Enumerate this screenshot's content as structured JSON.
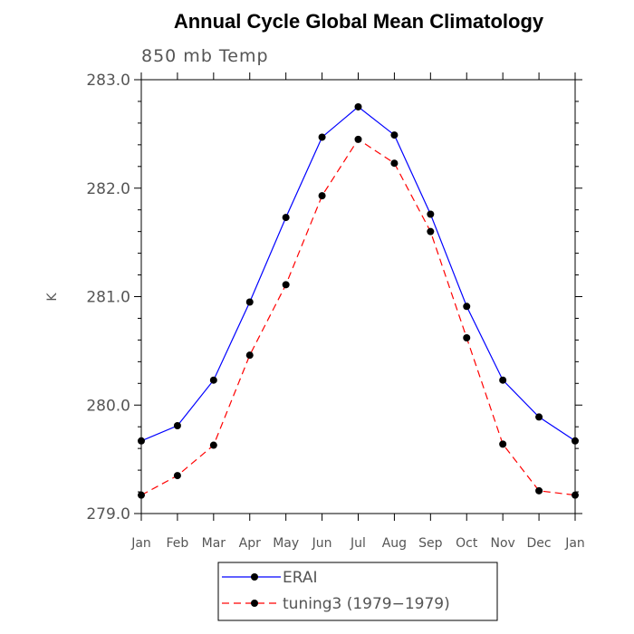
{
  "chart_data": {
    "type": "line",
    "title": "Annual Cycle Global Mean Climatology",
    "subtitle": "850 mb Temp",
    "xlabel": "",
    "ylabel": "K",
    "ylim": [
      279.0,
      283.0
    ],
    "yticks": [
      "279.0",
      "280.0",
      "281.0",
      "282.0",
      "283.0"
    ],
    "categories": [
      "Jan",
      "Feb",
      "Mar",
      "Apr",
      "May",
      "Jun",
      "Jul",
      "Aug",
      "Sep",
      "Oct",
      "Nov",
      "Dec",
      "Jan"
    ],
    "series": [
      {
        "name": "ERAI",
        "color": "#0000ff",
        "dash": "solid",
        "values": [
          279.67,
          279.81,
          280.23,
          280.95,
          281.73,
          282.47,
          282.75,
          282.49,
          281.76,
          280.91,
          280.23,
          279.89,
          279.67
        ]
      },
      {
        "name": "tuning3 (1979−1979)",
        "color": "#ff0000",
        "dash": "dashed",
        "values": [
          279.17,
          279.35,
          279.63,
          280.46,
          281.11,
          281.93,
          282.45,
          282.23,
          281.6,
          280.62,
          279.64,
          279.21,
          279.17
        ]
      }
    ],
    "grid": false,
    "legend": "bottom-center"
  }
}
